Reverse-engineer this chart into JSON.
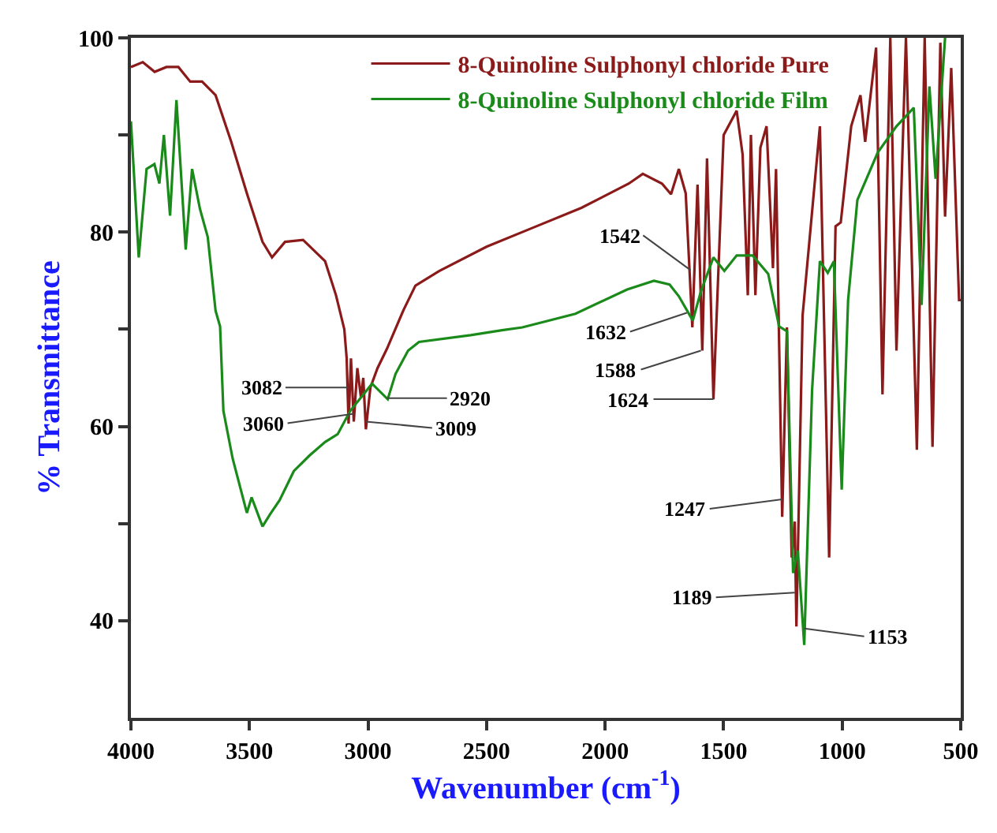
{
  "chart_data": {
    "type": "line",
    "xlabel": "Wavenumber (cm$^{-1}$)",
    "ylabel": "% Transmittance",
    "xlim": [
      4000,
      500
    ],
    "ylim": [
      30,
      100
    ],
    "xticks": [
      4000,
      3500,
      3000,
      2500,
      2000,
      1500,
      1000,
      500
    ],
    "yticks": [
      40,
      {
        "value": 50,
        "label": null
      },
      60,
      {
        "value": 70,
        "label": null
      },
      80,
      {
        "value": 90,
        "label": null
      },
      100
    ],
    "legend": "top",
    "marker": "none",
    "line_style": "solid",
    "series": [
      {
        "name": "8-Quinoline Sulphonyl chloride Pure",
        "color": "#8b1a1a",
        "x": [
          4000,
          3950,
          3900,
          3850,
          3800,
          3750,
          3700,
          3643,
          3577,
          3511,
          3445,
          3405,
          3350,
          3274,
          3181,
          3135,
          3100,
          3090,
          3082,
          3072,
          3060,
          3045,
          3030,
          3020,
          3009,
          2990,
          2960,
          2920,
          2850,
          2800,
          2700,
          2500,
          2300,
          2100,
          1900,
          1841,
          1760,
          1722,
          1689,
          1660,
          1632,
          1610,
          1590,
          1570,
          1543,
          1500,
          1445,
          1420,
          1398,
          1385,
          1366,
          1345,
          1319,
          1292,
          1279,
          1253,
          1233,
          1213,
          1200,
          1193,
          1167,
          1094,
          1055,
          1028,
          1006,
          962,
          923,
          903,
          857,
          830,
          797,
          771,
          731,
          685,
          652,
          619,
          586,
          566,
          540,
          507,
          500
        ],
        "values": [
          97,
          97.5,
          96.5,
          97,
          97,
          95.5,
          95.5,
          94.1,
          89.3,
          84,
          79,
          77.4,
          79,
          79.2,
          77,
          73.5,
          70,
          67,
          60.3,
          67,
          60.5,
          66,
          63,
          65,
          59.7,
          64,
          66,
          68,
          72,
          74.5,
          76,
          78.5,
          80.5,
          82.5,
          85,
          86,
          85,
          83.9,
          86.5,
          84,
          70.2,
          84.9,
          67.8,
          87.6,
          62.8,
          90,
          92.5,
          88,
          73.5,
          90,
          73.5,
          88.7,
          90.9,
          76.3,
          86.5,
          50.7,
          70.2,
          46.5,
          50.2,
          39.4,
          71.4,
          90.9,
          46.5,
          80.6,
          81,
          90.9,
          94.1,
          89.3,
          99,
          63.3,
          100,
          67.8,
          100,
          57.6,
          100,
          57.9,
          99.5,
          81.6,
          96.9,
          73,
          73
        ]
      },
      {
        "name": "8-Quinoline Sulphonyl chloride Film",
        "color": "#1a8a1a",
        "x": [
          4000,
          3967,
          3934,
          3901,
          3880,
          3861,
          3835,
          3808,
          3769,
          3742,
          3709,
          3676,
          3643,
          3624,
          3610,
          3571,
          3511,
          3491,
          3445,
          3412,
          3373,
          3313,
          3247,
          3181,
          3128,
          3075,
          2983,
          2917,
          2884,
          2831,
          2785,
          2567,
          2435,
          2349,
          2125,
          1907,
          1794,
          1728,
          1689,
          1630,
          1596,
          1543,
          1497,
          1445,
          1378,
          1312,
          1266,
          1233,
          1207,
          1187,
          1160,
          1127,
          1094,
          1061,
          1035,
          1002,
          975,
          936,
          850,
          771,
          698,
          665,
          632,
          606,
          566
        ],
        "values": [
          91.4,
          77.4,
          86.5,
          87,
          85,
          90,
          81.7,
          93.6,
          78.2,
          86.5,
          82.4,
          79.5,
          71.9,
          70.3,
          61.6,
          56.7,
          51.1,
          52.7,
          49.7,
          51,
          52.4,
          55.4,
          57,
          58.4,
          59.2,
          61.6,
          64.4,
          62.8,
          65.4,
          67.8,
          68.7,
          69.4,
          69.9,
          70.2,
          71.6,
          74.1,
          75,
          74.6,
          73.4,
          70.9,
          73.9,
          77.4,
          76,
          77.6,
          77.6,
          75.7,
          70.3,
          69.8,
          44.9,
          47.2,
          37.5,
          63.7,
          77,
          75.8,
          77,
          53.5,
          73,
          83.3,
          88.2,
          90.9,
          92.8,
          72.5,
          95,
          85.5,
          100
        ]
      }
    ],
    "annotations": [
      {
        "text": "3082",
        "x": 3082,
        "y": 64
      },
      {
        "text": "3060",
        "x": 3060,
        "y": 61.3
      },
      {
        "text": "2920",
        "x": 2920,
        "y": 62.9
      },
      {
        "text": "3009",
        "x": 3009,
        "y": 60.5
      },
      {
        "text": "1542",
        "x": 1640,
        "y": 76.1
      },
      {
        "text": "1632",
        "x": 1655,
        "y": 71.7
      },
      {
        "text": "1588",
        "x": 1596,
        "y": 67.8
      },
      {
        "text": "1624",
        "x": 1543,
        "y": 62.8
      },
      {
        "text": "1247",
        "x": 1253,
        "y": 52.5
      },
      {
        "text": "1189",
        "x": 1200,
        "y": 42.9
      },
      {
        "text": "1153",
        "x": 1160,
        "y": 39.2
      }
    ]
  }
}
